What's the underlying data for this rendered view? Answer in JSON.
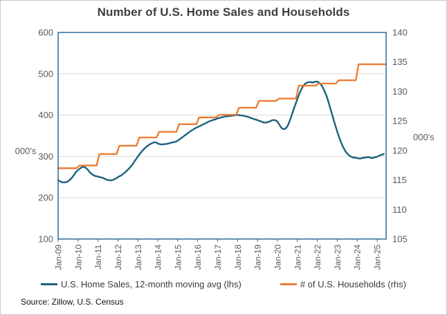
{
  "figure": {
    "source": "Source: Zillow, U.S. Census"
  },
  "colors": {
    "home_sales": "#1a617f",
    "households": "#eb7d34",
    "plot_border": "#2a6a9e",
    "gridline": "#d9d9d9",
    "tick_text": "#595959",
    "title_text": "#3f3f3f",
    "legend_text": "#3a3a3a",
    "source_text": "#101010"
  },
  "chart_data": {
    "type": "line",
    "title": "Number of U.S. Home Sales and Households",
    "grid": "horizontal-only",
    "legend_position": "bottom-center",
    "x_domain": [
      2009.0,
      2025.45
    ],
    "x_tick_labels": [
      "Jan-09",
      "Jan-10",
      "Jan-11",
      "Jan-12",
      "Jan-13",
      "Jan-14",
      "Jan-15",
      "Jan-16",
      "Jan-17",
      "Jan-18",
      "Jan-19",
      "Jan-20",
      "Jan-21",
      "Jan-22",
      "Jan-23",
      "Jan-24",
      "Jan-25"
    ],
    "left_axis": {
      "label": "000's",
      "min": 100,
      "max": 600,
      "ticks": [
        600,
        500,
        400,
        300,
        200,
        100
      ]
    },
    "right_axis": {
      "label": "000's",
      "min": 105,
      "max": 140,
      "ticks": [
        140,
        135,
        130,
        125,
        120,
        115,
        110,
        105
      ]
    },
    "series": [
      {
        "name": "U.S. Home Sales, 12-month moving avg (lhs)",
        "axis": "left",
        "style": "line",
        "color": "#1a617f",
        "start_year": 2009.0,
        "interval_years": 0.0833333,
        "values": [
          242,
          240,
          238,
          237,
          237,
          238,
          240,
          243,
          247,
          252,
          258,
          263,
          267,
          270,
          273,
          275,
          274,
          271,
          267,
          262,
          258,
          255,
          253,
          252,
          251,
          250,
          249,
          248,
          246,
          244,
          243,
          242,
          242,
          243,
          245,
          247,
          250,
          252,
          254,
          257,
          260,
          264,
          268,
          272,
          277,
          282,
          288,
          294,
          300,
          305,
          310,
          315,
          319,
          323,
          326,
          329,
          331,
          333,
          334,
          334,
          331,
          330,
          329,
          329,
          330,
          330,
          331,
          332,
          333,
          334,
          335,
          336,
          338,
          341,
          344,
          347,
          350,
          353,
          356,
          359,
          362,
          364,
          367,
          369,
          371,
          373,
          375,
          377,
          379,
          381,
          383,
          385,
          386,
          388,
          389,
          390,
          392,
          393,
          394,
          395,
          396,
          397,
          397,
          398,
          398,
          399,
          399,
          400,
          400,
          400,
          399,
          399,
          398,
          397,
          396,
          395,
          393,
          392,
          390,
          389,
          388,
          386,
          385,
          383,
          382,
          382,
          383,
          384,
          386,
          388,
          388,
          387,
          384,
          378,
          371,
          367,
          366,
          368,
          373,
          382,
          393,
          405,
          417,
          428,
          439,
          450,
          459,
          467,
          473,
          477,
          479,
          480,
          480,
          479,
          480,
          481,
          481,
          479,
          475,
          469,
          461,
          452,
          441,
          428,
          414,
          400,
          386,
          373,
          360,
          348,
          337,
          327,
          319,
          312,
          307,
          303,
          300,
          298,
          297,
          297,
          296,
          295,
          295,
          296,
          297,
          297,
          298,
          298,
          297,
          296,
          297,
          298,
          299,
          301,
          303,
          304,
          306
        ]
      },
      {
        "name": "# of U.S. Households (rhs)",
        "axis": "right",
        "style": "step",
        "color": "#eb7d34",
        "extend_to": 2025.45,
        "points": [
          [
            2009,
            117.0
          ],
          [
            2010,
            117.45
          ],
          [
            2011,
            119.4
          ],
          [
            2012,
            120.8
          ],
          [
            2013,
            122.2
          ],
          [
            2014,
            123.15
          ],
          [
            2015,
            124.45
          ],
          [
            2016,
            125.6
          ],
          [
            2017,
            126.05
          ],
          [
            2018,
            127.25
          ],
          [
            2019,
            128.4
          ],
          [
            2020,
            128.8
          ],
          [
            2021,
            131.0
          ],
          [
            2022,
            131.35
          ],
          [
            2023,
            131.9
          ],
          [
            2024,
            134.6
          ]
        ]
      }
    ]
  }
}
